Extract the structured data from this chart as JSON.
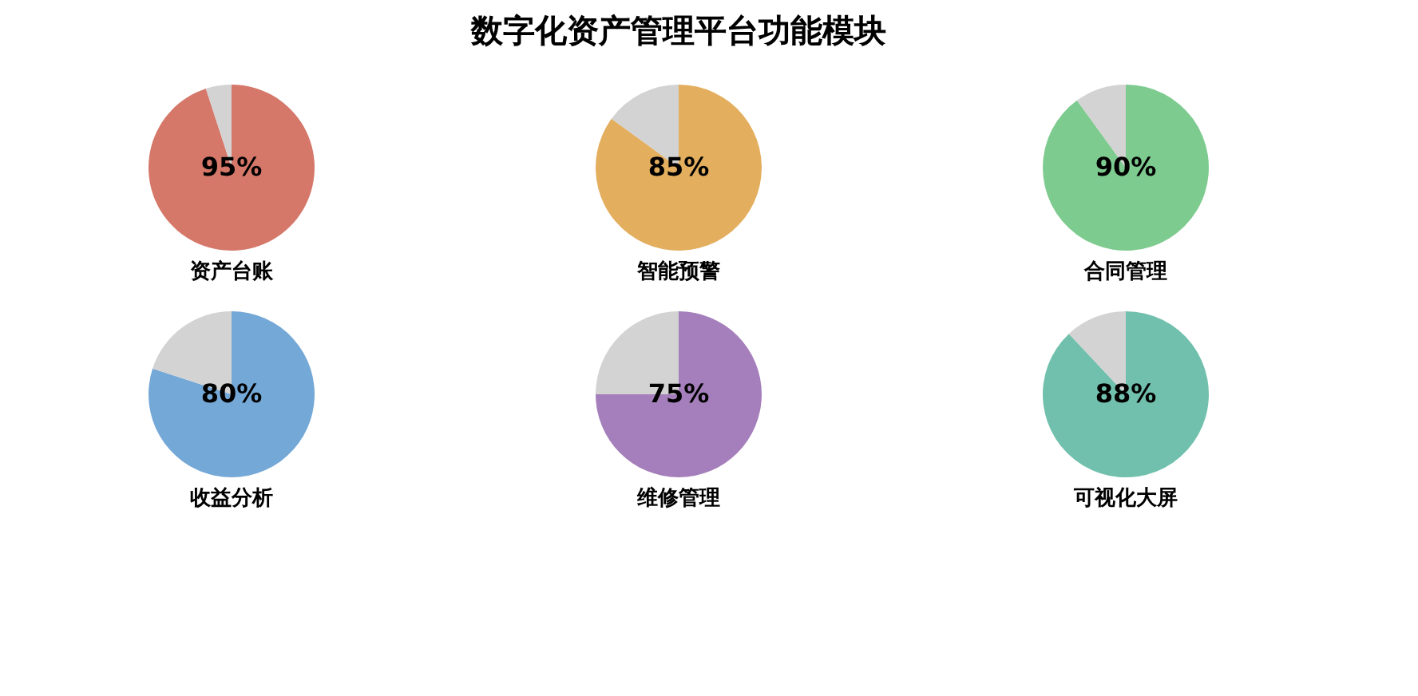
{
  "chart_data": [
    {
      "type": "other",
      "title": "数字化资产管理平台功能模块"
    },
    {
      "type": "pie",
      "title": "资产台账",
      "categories": [
        null,
        null
      ],
      "values": [
        95,
        5
      ],
      "colors": [
        "#d5786a",
        "#d3d3d3"
      ],
      "value_labels": [
        "95%",
        null
      ]
    },
    {
      "type": "pie",
      "title": "智能预警",
      "categories": [
        null,
        null
      ],
      "values": [
        85,
        15
      ],
      "colors": [
        "#e3ae5e",
        "#d3d3d3"
      ],
      "value_labels": [
        "85%",
        null
      ]
    },
    {
      "type": "pie",
      "title": "合同管理",
      "categories": [
        null,
        null
      ],
      "values": [
        90,
        10
      ],
      "colors": [
        "#7ecb90",
        "#d3d3d3"
      ],
      "value_labels": [
        "90%",
        null
      ]
    },
    {
      "type": "pie",
      "title": "收益分析",
      "categories": [
        null,
        null
      ],
      "values": [
        80,
        20
      ],
      "colors": [
        "#74a8d7",
        "#d3d3d3"
      ],
      "value_labels": [
        "80%",
        null
      ]
    },
    {
      "type": "pie",
      "title": "维修管理",
      "categories": [
        null,
        null
      ],
      "values": [
        75,
        25
      ],
      "colors": [
        "#a57fbb",
        "#d3d3d3"
      ],
      "value_labels": [
        "75%",
        null
      ]
    },
    {
      "type": "pie",
      "title": "可视化大屏",
      "categories": [
        null,
        null
      ],
      "values": [
        88,
        12
      ],
      "colors": [
        "#71c0ad",
        "#d3d3d3"
      ],
      "value_labels": [
        "88%",
        null
      ]
    }
  ]
}
